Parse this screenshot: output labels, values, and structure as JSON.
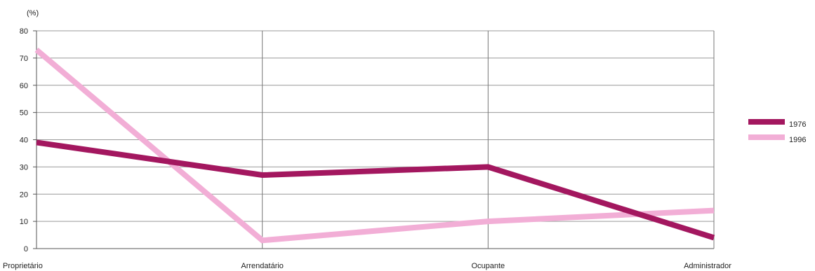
{
  "chart_data": {
    "type": "line",
    "ylabel": "(%)",
    "categories": [
      "Proprietário",
      "Arrendatário",
      "Ocupante",
      "Administrador"
    ],
    "ylim": [
      0,
      80
    ],
    "yticks": [
      0,
      10,
      20,
      30,
      40,
      50,
      60,
      70,
      80
    ],
    "grid": true,
    "legend_position": "right",
    "series": [
      {
        "name": "1976",
        "color": "#a3175f",
        "values": [
          39,
          27,
          30,
          4
        ]
      },
      {
        "name": "1996",
        "color": "#f2aed6",
        "values": [
          73,
          3,
          10,
          14
        ]
      }
    ]
  }
}
